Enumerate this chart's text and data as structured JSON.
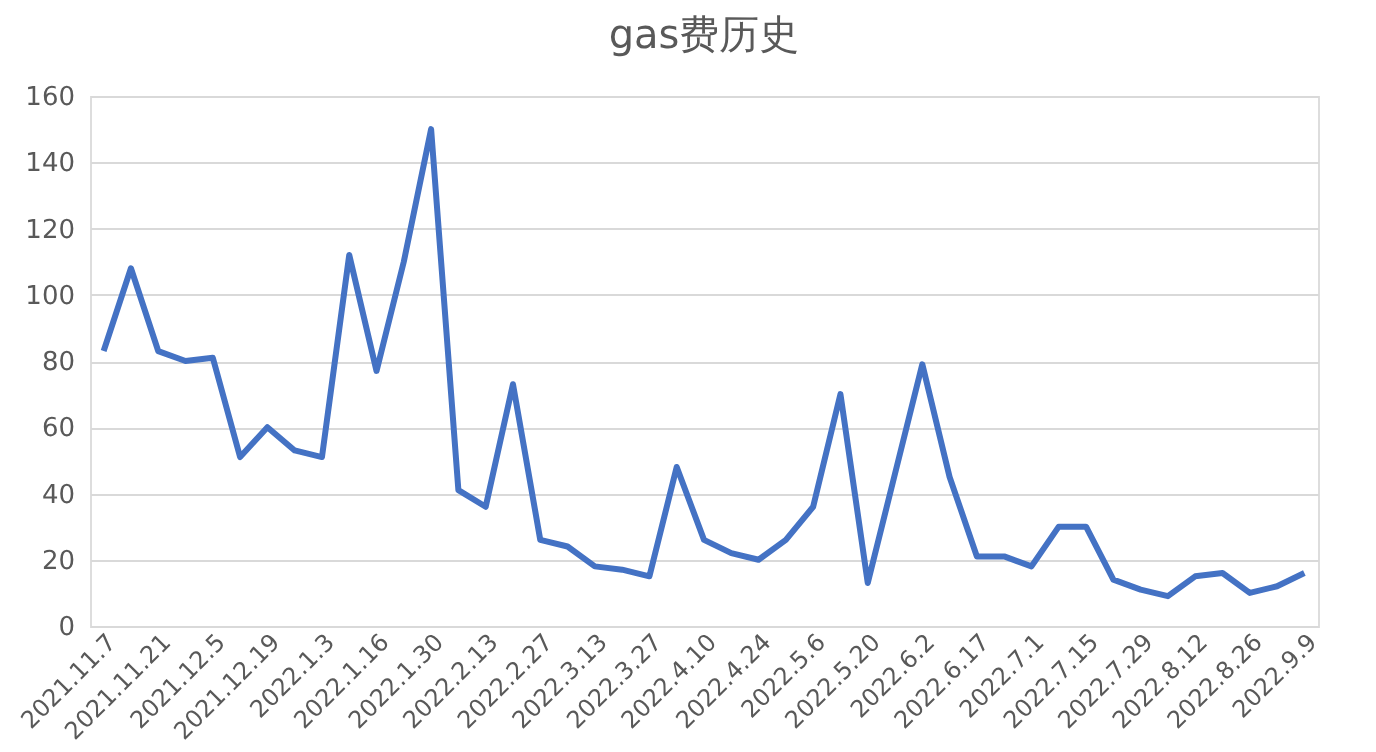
{
  "chart_data": {
    "type": "line",
    "title": "gas费历史",
    "categories": [
      "2021.11.7",
      null,
      "2021.11.21",
      null,
      "2021.12.5",
      null,
      "2021.12.19",
      null,
      "2022.1.3",
      null,
      "2022.1.16",
      null,
      "2022.1.30",
      null,
      "2022.2.13",
      null,
      "2022.2.27",
      null,
      "2022.3.13",
      null,
      "2022.3.27",
      null,
      "2022.4.10",
      null,
      "2022.4.24",
      null,
      "2022.5.6",
      null,
      "2022.5.20",
      null,
      "2022.6.2",
      null,
      "2022.6.17",
      null,
      "2022.7.1",
      null,
      "2022.7.15",
      null,
      "2022.7.29",
      null,
      "2022.8.12",
      null,
      "2022.8.26",
      null,
      "2022.9.9"
    ],
    "series": [
      {
        "color": "#4472c4",
        "values": [
          83,
          108,
          83,
          80,
          81,
          51,
          60,
          53,
          51,
          112,
          77,
          110,
          150,
          41,
          36,
          73,
          26,
          24,
          18,
          17,
          15,
          48,
          26,
          22,
          20,
          26,
          36,
          70,
          13,
          46,
          79,
          45,
          21,
          21,
          18,
          30,
          30,
          14,
          11,
          9,
          15,
          16,
          10,
          12,
          16
        ]
      }
    ],
    "ylim": [
      0,
      160
    ],
    "yticks": [
      0,
      20,
      40,
      60,
      80,
      100,
      120,
      140,
      160
    ],
    "grid": "y",
    "legend": false,
    "marker": "none",
    "line_style": "solid"
  }
}
